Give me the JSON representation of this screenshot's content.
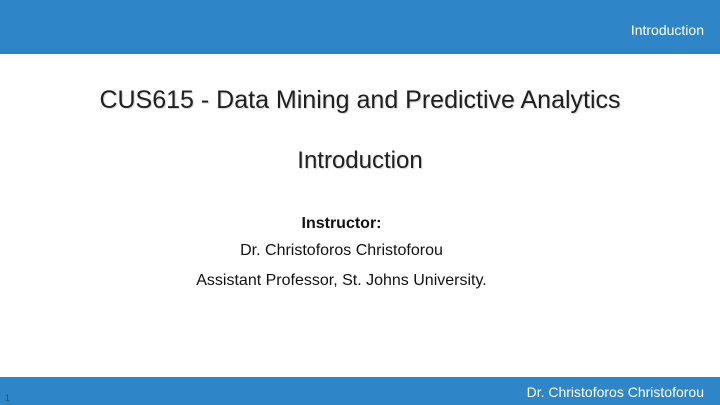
{
  "header": {
    "section_label": "Introduction"
  },
  "slide": {
    "title": "CUS615 - Data Mining and Predictive Analytics",
    "subtitle": "Introduction",
    "instructor_heading": "Instructor:",
    "instructor_name": "Dr. Christoforos Christoforou",
    "instructor_position": "Assistant Professor, St. Johns University."
  },
  "footer": {
    "author": "Dr. Christoforos Christoforou",
    "slide_number": "1"
  },
  "colors": {
    "accent_bar": "#2e86c9",
    "bar_text": "#ffffff",
    "body_text": "#1f1f1f"
  }
}
